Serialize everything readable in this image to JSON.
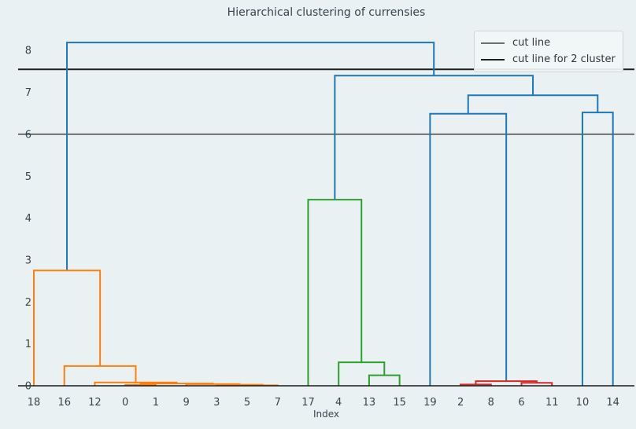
{
  "chart_data": {
    "type": "dendrogram",
    "title": "Hierarchical clustering of currensies",
    "xlabel": "Index",
    "ylabel": "",
    "leaf_order": [
      "18",
      "16",
      "12",
      "0",
      "1",
      "9",
      "3",
      "5",
      "7",
      "17",
      "4",
      "13",
      "15",
      "19",
      "2",
      "8",
      "6",
      "11",
      "10",
      "14"
    ],
    "yticks": [
      "0",
      "1",
      "2",
      "3",
      "4",
      "5",
      "6",
      "7",
      "8"
    ],
    "ylim": [
      0,
      8.6
    ],
    "grid": false,
    "background": "#eaf1f3",
    "text_color": "#36454c",
    "axis_color": "#1a1a1a",
    "colors": {
      "blue": "#1f77b4",
      "orange": "#ff7f0e",
      "green": "#2ca02c",
      "red": "#d62728"
    },
    "cut_lines": [
      {
        "label": "cut line",
        "value": 6.0,
        "color": "#6f6f6f"
      },
      {
        "label": "cut line for 2 cluster",
        "value": 7.55,
        "color": "#1f1f1f"
      }
    ],
    "legend_position": "upper right",
    "tree": {
      "h": 8.19,
      "c": "blue",
      "children": [
        {
          "h": 2.75,
          "c": "orange",
          "children": [
            "18",
            {
              "h": 0.47,
              "c": "orange",
              "children": [
                "16",
                {
                  "h": 0.08,
                  "c": "orange",
                  "children": [
                    "12",
                    {
                      "h": 0.055,
                      "c": "orange",
                      "children": [
                        {
                          "h": 0.02,
                          "c": "orange",
                          "children": [
                            "0",
                            "1"
                          ]
                        },
                        {
                          "h": 0.04,
                          "c": "orange",
                          "children": [
                            "9",
                            {
                              "h": 0.025,
                              "c": "orange",
                              "children": [
                                "3",
                                {
                                  "h": 0.012,
                                  "c": "orange",
                                  "children": [
                                    "5",
                                    "7"
                                  ]
                                }
                              ]
                            }
                          ]
                        }
                      ]
                    }
                  ]
                }
              ]
            }
          ]
        },
        {
          "h": 7.4,
          "c": "blue",
          "children": [
            {
              "h": 4.44,
              "c": "green",
              "children": [
                "17",
                {
                  "h": 0.56,
                  "c": "green",
                  "children": [
                    "4",
                    {
                      "h": 0.25,
                      "c": "green",
                      "children": [
                        "13",
                        "15"
                      ]
                    }
                  ]
                }
              ]
            },
            {
              "h": 6.93,
              "c": "blue",
              "children": [
                {
                  "h": 6.49,
                  "c": "blue",
                  "children": [
                    "19",
                    {
                      "h": 0.11,
                      "c": "red",
                      "children": [
                        {
                          "h": 0.03,
                          "c": "red",
                          "children": [
                            "2",
                            "8"
                          ]
                        },
                        {
                          "h": 0.07,
                          "c": "red",
                          "children": [
                            "6",
                            "11"
                          ]
                        }
                      ]
                    }
                  ]
                },
                {
                  "h": 6.52,
                  "c": "blue",
                  "children": [
                    "10",
                    "14"
                  ]
                }
              ]
            }
          ]
        }
      ]
    }
  }
}
